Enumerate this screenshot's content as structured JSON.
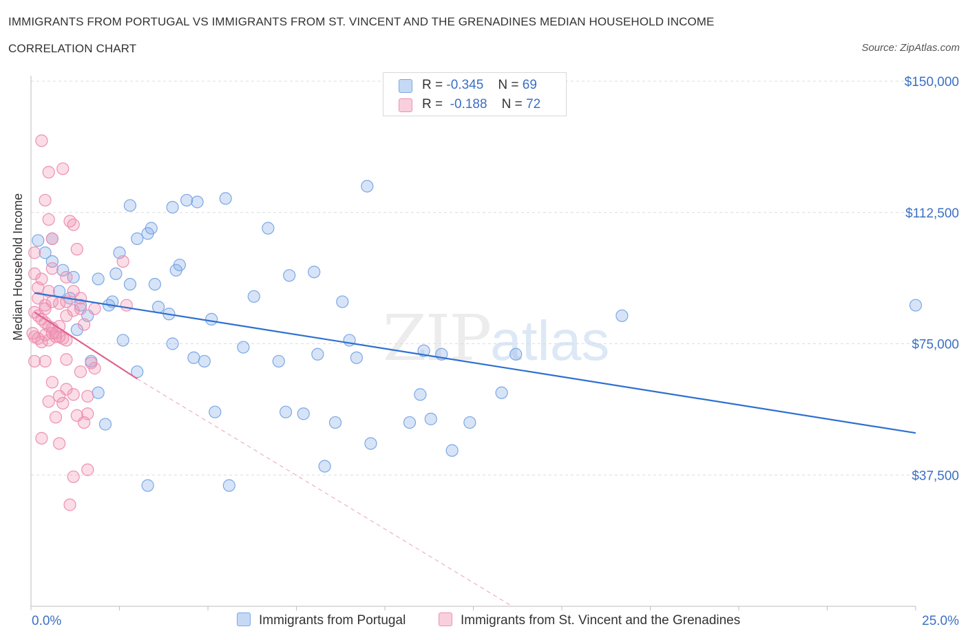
{
  "title_line1": "IMMIGRANTS FROM PORTUGAL VS IMMIGRANTS FROM ST. VINCENT AND THE GRENADINES MEDIAN HOUSEHOLD INCOME",
  "title_line2": "CORRELATION CHART",
  "source": "Source: ZipAtlas.com",
  "watermark": {
    "zip": "ZIP",
    "atlas": "atlas"
  },
  "legend": [
    {
      "r_label": "R =",
      "r_value": "-0.345",
      "n_label": "N =",
      "n_value": "69",
      "color": "#7aa7e6"
    },
    {
      "r_label": "R =",
      "r_value": "-0.188",
      "n_label": "N =",
      "n_value": "72",
      "color": "#ee8fb0"
    }
  ],
  "chart_data": {
    "type": "scatter",
    "xlabel": "",
    "ylabel": "Median Household Income",
    "xlim": [
      0,
      25
    ],
    "ylim": [
      0,
      150000
    ],
    "x_tick_labels": [
      "0.0%",
      "25.0%"
    ],
    "y_ticks": [
      37500,
      75000,
      112500,
      150000
    ],
    "y_tick_labels": [
      "$37,500",
      "$75,000",
      "$112,500",
      "$150,000"
    ],
    "grid": "horizontal dashed",
    "legend_position": "bottom",
    "series": [
      {
        "name": "Immigrants from Portugal",
        "color": "#7aa7e6",
        "line_color": "#2d6fd0",
        "trend": {
          "x": [
            0.1,
            25.0
          ],
          "y": [
            89500,
            49500
          ]
        },
        "points": [
          [
            0.2,
            104.5
          ],
          [
            0.4,
            101
          ],
          [
            0.6,
            98.5
          ],
          [
            0.9,
            96
          ],
          [
            0.8,
            90
          ],
          [
            1.1,
            88
          ],
          [
            1.2,
            94
          ],
          [
            1.4,
            86
          ],
          [
            1.6,
            83
          ],
          [
            1.9,
            93.5
          ],
          [
            1.7,
            70
          ],
          [
            1.9,
            61
          ],
          [
            2.1,
            52
          ],
          [
            2.2,
            86
          ],
          [
            2.3,
            87
          ],
          [
            2.5,
            101
          ],
          [
            2.6,
            76
          ],
          [
            2.8,
            92
          ],
          [
            2.8,
            114.5
          ],
          [
            3.0,
            105
          ],
          [
            3.3,
            106.5
          ],
          [
            3.4,
            108
          ],
          [
            3.5,
            92
          ],
          [
            3.6,
            85.5
          ],
          [
            3.0,
            67
          ],
          [
            3.9,
            83.5
          ],
          [
            4.0,
            114
          ],
          [
            4.1,
            96
          ],
          [
            4.2,
            97.5
          ],
          [
            4.4,
            116
          ],
          [
            4.6,
            71
          ],
          [
            4.7,
            115.5
          ],
          [
            4.9,
            70
          ],
          [
            5.1,
            82
          ],
          [
            5.2,
            55.5
          ],
          [
            5.5,
            116.5
          ],
          [
            6.0,
            74
          ],
          [
            6.3,
            88.5
          ],
          [
            6.7,
            108
          ],
          [
            7.0,
            70
          ],
          [
            7.2,
            55.5
          ],
          [
            7.3,
            94.5
          ],
          [
            7.7,
            55
          ],
          [
            8.0,
            95.5
          ],
          [
            8.1,
            72
          ],
          [
            8.3,
            40
          ],
          [
            8.6,
            52.5
          ],
          [
            8.8,
            87
          ],
          [
            9.0,
            76
          ],
          [
            9.2,
            71
          ],
          [
            9.5,
            120
          ],
          [
            9.6,
            46.5
          ],
          [
            10.7,
            52.5
          ],
          [
            11.0,
            60.5
          ],
          [
            11.1,
            73
          ],
          [
            11.3,
            53.5
          ],
          [
            11.6,
            72
          ],
          [
            11.9,
            44.5
          ],
          [
            12.4,
            52.5
          ],
          [
            13.3,
            61
          ],
          [
            13.7,
            72
          ],
          [
            16.7,
            83
          ],
          [
            25.0,
            86
          ],
          [
            3.3,
            34.5
          ],
          [
            5.6,
            34.5
          ],
          [
            1.3,
            79
          ],
          [
            0.6,
            105
          ],
          [
            2.4,
            95
          ],
          [
            4.0,
            75
          ]
        ]
      },
      {
        "name": "Immigrants from St. Vincent and the Grenadines",
        "color": "#ee8fb0",
        "line_color": "#e0608c",
        "trend": {
          "x": [
            0.1,
            3.0
          ],
          "y": [
            84000,
            65000
          ]
        },
        "trend_ext": {
          "x": [
            3.0,
            13.6
          ],
          "y": [
            65000,
            0
          ]
        },
        "points": [
          [
            0.3,
            133
          ],
          [
            0.5,
            124
          ],
          [
            0.9,
            125
          ],
          [
            0.4,
            116
          ],
          [
            0.5,
            110.5
          ],
          [
            1.1,
            110
          ],
          [
            1.2,
            109
          ],
          [
            0.6,
            105
          ],
          [
            1.3,
            102
          ],
          [
            0.1,
            101
          ],
          [
            0.2,
            88
          ],
          [
            0.4,
            86
          ],
          [
            0.6,
            87
          ],
          [
            0.8,
            86.5
          ],
          [
            1.0,
            87
          ],
          [
            1.2,
            90
          ],
          [
            1.4,
            88
          ],
          [
            0.1,
            84
          ],
          [
            0.2,
            83
          ],
          [
            0.3,
            82
          ],
          [
            0.4,
            81
          ],
          [
            0.5,
            80
          ],
          [
            0.6,
            79.5
          ],
          [
            0.7,
            78
          ],
          [
            0.8,
            77
          ],
          [
            0.9,
            76.5
          ],
          [
            1.0,
            76
          ],
          [
            0.05,
            78
          ],
          [
            0.1,
            77
          ],
          [
            0.2,
            76.5
          ],
          [
            0.3,
            75.5
          ],
          [
            0.4,
            77.5
          ],
          [
            0.5,
            76
          ],
          [
            0.6,
            78
          ],
          [
            0.7,
            77
          ],
          [
            0.8,
            80
          ],
          [
            1.0,
            83
          ],
          [
            1.2,
            84.5
          ],
          [
            1.4,
            85
          ],
          [
            0.3,
            93.5
          ],
          [
            1.5,
            80.5
          ],
          [
            0.6,
            96.5
          ],
          [
            1.0,
            94
          ],
          [
            2.6,
            98.5
          ],
          [
            2.7,
            86
          ],
          [
            0.1,
            70
          ],
          [
            0.4,
            70
          ],
          [
            0.6,
            64
          ],
          [
            0.8,
            60
          ],
          [
            1.0,
            70.5
          ],
          [
            1.2,
            60.5
          ],
          [
            1.4,
            67
          ],
          [
            1.6,
            60
          ],
          [
            1.7,
            69.5
          ],
          [
            1.8,
            68
          ],
          [
            0.5,
            58.5
          ],
          [
            0.7,
            54
          ],
          [
            1.0,
            62
          ],
          [
            1.3,
            54.5
          ],
          [
            1.5,
            52.5
          ],
          [
            1.6,
            55
          ],
          [
            0.3,
            48
          ],
          [
            0.8,
            46.5
          ],
          [
            1.6,
            39
          ],
          [
            1.2,
            37
          ],
          [
            1.1,
            29
          ],
          [
            0.9,
            58
          ],
          [
            0.5,
            90
          ],
          [
            0.2,
            91
          ],
          [
            0.4,
            85
          ],
          [
            1.8,
            85
          ],
          [
            0.1,
            95
          ]
        ]
      }
    ]
  }
}
